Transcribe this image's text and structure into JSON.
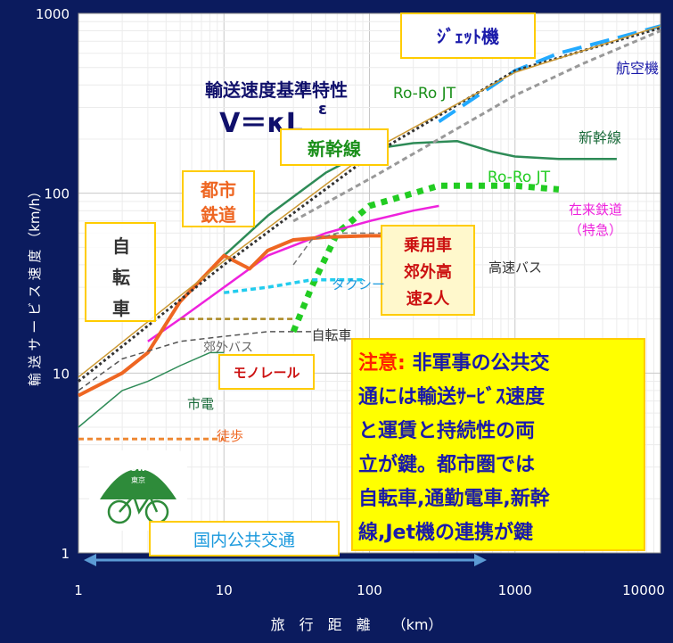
{
  "chart_data": {
    "type": "line",
    "xscale": "log",
    "yscale": "log",
    "xlim": [
      1,
      10000
    ],
    "ylim": [
      1,
      1000
    ],
    "x_ticks": [
      "1",
      "10",
      "100",
      "1000",
      "10000"
    ],
    "y_ticks": [
      "1",
      "10",
      "100",
      "1000"
    ],
    "xlabel": "旅　行　距　離　　（km）",
    "ylabel": "輸 送 サ ー ビ ス 速 度 （km/h）",
    "grid": true,
    "series": [
      {
        "name": "航空機",
        "color": "#22aaff",
        "style": "long-dash",
        "width": 4,
        "points": [
          [
            300,
            250
          ],
          [
            500,
            330
          ],
          [
            1000,
            480
          ],
          [
            2000,
            600
          ],
          [
            5000,
            730
          ],
          [
            10000,
            850
          ]
        ]
      },
      {
        "name": "新幹線",
        "color": "#2e8b57",
        "style": "solid",
        "width": 2.5,
        "points": [
          [
            10,
            45
          ],
          [
            20,
            75
          ],
          [
            50,
            130
          ],
          [
            100,
            175
          ],
          [
            200,
            190
          ],
          [
            400,
            195
          ],
          [
            700,
            170
          ],
          [
            1000,
            160
          ],
          [
            2000,
            155
          ],
          [
            5000,
            155
          ]
        ]
      },
      {
        "name": "Ro-Ro JT",
        "color": "#22cc22",
        "style": "dotted",
        "width": 7,
        "points": [
          [
            30,
            17
          ],
          [
            40,
            30
          ],
          [
            60,
            60
          ],
          [
            100,
            85
          ],
          [
            200,
            100
          ],
          [
            300,
            110
          ],
          [
            600,
            110
          ],
          [
            1000,
            110
          ],
          [
            2000,
            105
          ]
        ]
      },
      {
        "name": "在来鉄道(特急)",
        "color": "#ee22dd",
        "style": "solid",
        "width": 2.5,
        "points": [
          [
            3,
            15
          ],
          [
            5,
            20
          ],
          [
            10,
            30
          ],
          [
            20,
            45
          ],
          [
            50,
            60
          ],
          [
            100,
            70
          ],
          [
            200,
            80
          ],
          [
            300,
            85
          ]
        ]
      },
      {
        "name": "乗用車",
        "color": "#ee6622",
        "style": "solid",
        "width": 4,
        "points": [
          [
            1,
            7.5
          ],
          [
            2,
            10
          ],
          [
            3,
            13
          ],
          [
            5,
            25
          ],
          [
            10,
            45
          ],
          [
            15,
            38
          ],
          [
            20,
            48
          ],
          [
            30,
            55
          ],
          [
            50,
            57
          ],
          [
            100,
            58
          ],
          [
            200,
            58
          ],
          [
            500,
            60
          ]
        ]
      },
      {
        "name": "高速バス",
        "color": "#777777",
        "style": "dash",
        "width": 1.5,
        "points": [
          [
            30,
            40
          ],
          [
            40,
            55
          ],
          [
            60,
            60
          ],
          [
            100,
            60
          ],
          [
            200,
            60
          ],
          [
            500,
            60
          ]
        ]
      },
      {
        "name": "タクシー",
        "color": "#22ccee",
        "style": "dash",
        "width": 3.5,
        "points": [
          [
            10,
            28
          ],
          [
            20,
            30
          ],
          [
            40,
            33
          ],
          [
            60,
            33
          ],
          [
            90,
            33
          ]
        ]
      },
      {
        "name": "自転車",
        "color": "#555555",
        "style": "dash",
        "width": 1.5,
        "points": [
          [
            1,
            8
          ],
          [
            2,
            12
          ],
          [
            5,
            15
          ],
          [
            10,
            16
          ],
          [
            20,
            17
          ],
          [
            40,
            17
          ]
        ]
      },
      {
        "name": "郊外バス",
        "color": "#aa8822",
        "style": "dash",
        "width": 2.5,
        "points": [
          [
            5,
            20
          ],
          [
            10,
            20
          ],
          [
            20,
            20
          ],
          [
            30,
            20
          ]
        ]
      },
      {
        "name": "市電",
        "color": "#2e8b57",
        "style": "solid",
        "width": 1.5,
        "points": [
          [
            1,
            5
          ],
          [
            2,
            8
          ],
          [
            3,
            9
          ],
          [
            5,
            11
          ],
          [
            8,
            13
          ],
          [
            10,
            13
          ]
        ]
      },
      {
        "name": "徒歩",
        "color": "#ee8833",
        "style": "dash",
        "width": 3,
        "points": [
          [
            1,
            4.3
          ],
          [
            2,
            4.3
          ],
          [
            5,
            4.3
          ],
          [
            8,
            4.3
          ],
          [
            10,
            4.3
          ]
        ]
      },
      {
        "name": "輸送速度基準特性",
        "color": "#333333",
        "style": "dotted",
        "width": 3,
        "points": [
          [
            1,
            9
          ],
          [
            10,
            40
          ],
          [
            100,
            160
          ],
          [
            1000,
            480
          ],
          [
            10000,
            830
          ]
        ]
      },
      {
        "name": "",
        "color": "#999999",
        "style": "dash",
        "width": 3,
        "points": [
          [
            30,
            70
          ],
          [
            100,
            120
          ],
          [
            300,
            200
          ],
          [
            1000,
            350
          ],
          [
            3000,
            530
          ],
          [
            10000,
            800
          ]
        ]
      },
      {
        "name": "",
        "color": "#cc9933",
        "style": "solid",
        "width": 1.5,
        "points": [
          [
            1,
            9.5
          ],
          [
            10,
            42
          ],
          [
            100,
            170
          ],
          [
            1000,
            470
          ],
          [
            10000,
            850
          ]
        ]
      }
    ]
  },
  "labels": {
    "jet": "ｼﾞｪｯﾄ機",
    "plane": "航空機",
    "formula_title": "輸送速度基準特性",
    "formula": "V＝κL",
    "formula_exp": "ε",
    "roro1": "Ro-Ro JT",
    "shinkansen_box": "新幹線",
    "shinkansen": "新幹線",
    "roro2": "Ro-Ro JT",
    "urban_rail_1": "都市",
    "urban_rail_2": "鉄道",
    "zairai_1": "在来鉄道",
    "zairai_2": "（特急）",
    "bicycle_box_1": "自",
    "bicycle_box_2": "転",
    "bicycle_box_3": "車",
    "car_1": "乗用車",
    "car_2": "郊外高",
    "car_3": "速2人",
    "highway_bus": "高速バス",
    "taxi": "タクシー",
    "bicycle": "自転車",
    "suburban_bus": "郊外バス",
    "monorail": "モノレール",
    "tram": "市電",
    "walk": "徒歩",
    "domestic": "国内公共交通",
    "logo_text_1": "Ecoway",
    "logo_text_2": "東京"
  },
  "note": {
    "label": "注意:",
    "lines": [
      " 非軍事の公共交",
      "通には輸送ｻｰﾋﾞｽ速度",
      "と運賃と持続性の両",
      "立が鍵。都市圏では",
      "自転車,通勤電車,新幹",
      "線,Jet機の連携が鍵"
    ]
  },
  "colors": {
    "background": "#0b1b5e",
    "plot_bg": "#ffffff",
    "note_bg": "#ffff00",
    "note_label": "#ff2200",
    "note_text": "#1a1aaa"
  }
}
